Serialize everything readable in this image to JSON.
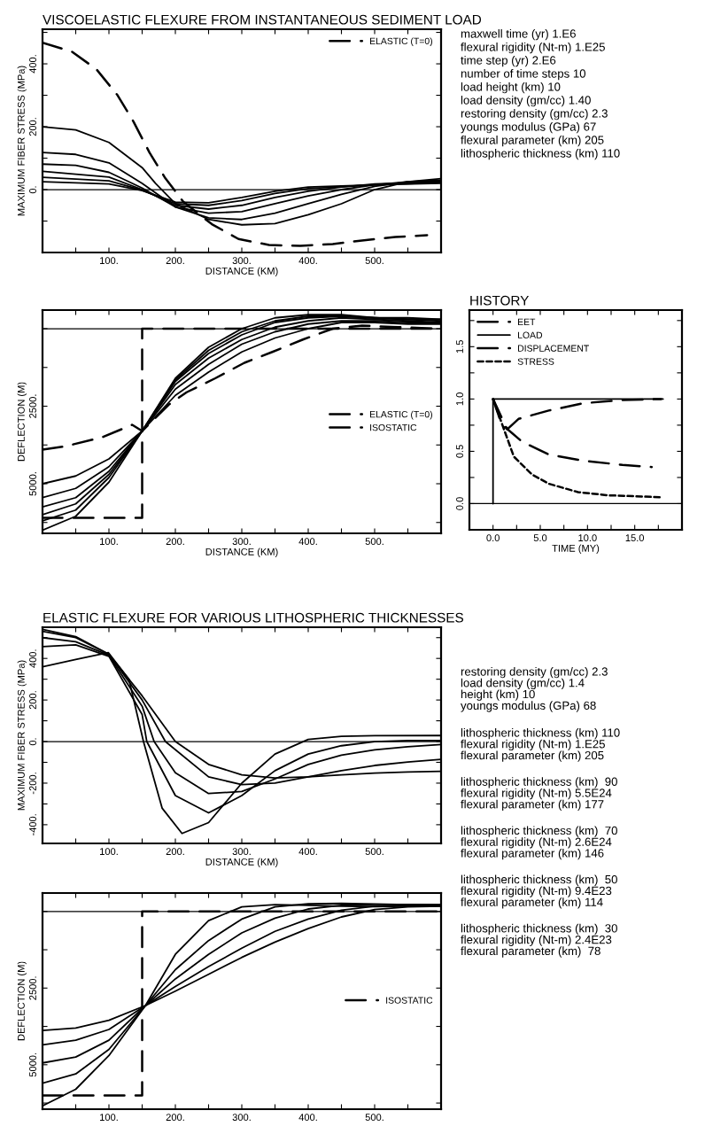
{
  "chart_data": [
    {
      "type": "line",
      "title": "VISCOELASTIC FLEXURE FROM INSTANTANEOUS SEDIMENT LOAD",
      "xlabel": "DISTANCE (KM)",
      "ylabel": "MAXIMUM FIBER STRESS (MPa)",
      "xlim": [
        0,
        600
      ],
      "ylim": [
        -200,
        510
      ],
      "xticks": [
        {
          "value": 50,
          "label": null
        },
        {
          "value": 100,
          "label": "100."
        },
        {
          "value": 150,
          "label": null
        },
        {
          "value": 200,
          "label": "200."
        },
        {
          "value": 250,
          "label": null
        },
        {
          "value": 300,
          "label": "300."
        },
        {
          "value": 350,
          "label": null
        },
        {
          "value": 400,
          "label": "400."
        },
        {
          "value": 450,
          "label": null
        },
        {
          "value": 500,
          "label": "500."
        },
        {
          "value": 550,
          "label": null
        }
      ],
      "yticks": [
        {
          "value": -100,
          "label": null
        },
        {
          "value": 0,
          "label": "0."
        },
        {
          "value": 100,
          "label": null
        },
        {
          "value": 200,
          "label": "200."
        },
        {
          "value": 300,
          "label": null
        },
        {
          "value": 400,
          "label": "400."
        },
        {
          "value": 500,
          "label": null
        }
      ],
      "legend": "top right",
      "ref_lines": [
        {
          "axis": "y",
          "value": 0,
          "color": "#000000"
        }
      ],
      "series": [
        {
          "name": "ELASTIC (T=0)",
          "color": "#000000",
          "line_style": "dashed",
          "x": [
            0,
            44,
            81,
            113,
            137,
            161,
            184,
            212,
            255,
            295,
            341,
            388,
            437,
            481,
            531,
            579
          ],
          "values": [
            467,
            439,
            383,
            300,
            216,
            118,
            39,
            -39,
            -110,
            -157,
            -176,
            -179,
            -173,
            -162,
            -151,
            -145
          ]
        },
        {
          "color": "#000000",
          "x": [
            0,
            50,
            100,
            150,
            170,
            200,
            250,
            300,
            350,
            400,
            450,
            500,
            550,
            600
          ],
          "values": [
            200,
            190,
            150,
            70,
            20,
            -45,
            -95,
            -112,
            -108,
            -80,
            -45,
            0,
            25,
            35
          ]
        },
        {
          "color": "#000000",
          "x": [
            0,
            50,
            100,
            150,
            200,
            250,
            300,
            350,
            400,
            450,
            500,
            550,
            600
          ],
          "values": [
            118,
            112,
            85,
            20,
            -55,
            -90,
            -95,
            -75,
            -45,
            -15,
            10,
            25,
            30
          ]
        },
        {
          "color": "#000000",
          "x": [
            0,
            50,
            100,
            150,
            200,
            250,
            300,
            350,
            400,
            450,
            500,
            550,
            600
          ],
          "values": [
            81,
            77,
            55,
            5,
            -55,
            -75,
            -70,
            -45,
            -20,
            0,
            15,
            25,
            28
          ]
        },
        {
          "color": "#000000",
          "x": [
            0,
            100,
            150,
            200,
            250,
            300,
            350,
            400,
            450,
            500,
            600
          ],
          "values": [
            58,
            40,
            0,
            -50,
            -62,
            -50,
            -25,
            -5,
            8,
            18,
            25
          ]
        },
        {
          "color": "#000000",
          "x": [
            0,
            100,
            150,
            200,
            250,
            300,
            350,
            400,
            500,
            600
          ],
          "values": [
            39,
            28,
            -2,
            -45,
            -50,
            -35,
            -12,
            3,
            15,
            22
          ]
        },
        {
          "color": "#000000",
          "x": [
            0,
            100,
            150,
            200,
            250,
            300,
            350,
            400,
            500,
            600
          ],
          "values": [
            25,
            18,
            -3,
            -40,
            -42,
            -25,
            -5,
            8,
            15,
            20
          ]
        }
      ],
      "annotations": [
        "maxwell time (yr) 1.E6",
        "flexural rigidity (Nt-m) 1.E25",
        "time step (yr) 2.E6",
        "number of time steps 10",
        "load height (km) 10",
        "load density (gm/cc) 1.40",
        "restoring density (gm/cc) 2.3",
        "youngs modulus (GPa) 67",
        "flexural parameter (km) 205",
        "lithospheric thickness (km) 110"
      ]
    },
    {
      "type": "line",
      "xlabel": "DISTANCE (KM)",
      "ylabel": "DEFLECTION (M)",
      "xlim": [
        0,
        600
      ],
      "ylim": [
        6600,
        -600
      ],
      "xticks": [
        {
          "value": 50,
          "label": null
        },
        {
          "value": 100,
          "label": "100."
        },
        {
          "value": 150,
          "label": null
        },
        {
          "value": 200,
          "label": "200."
        },
        {
          "value": 250,
          "label": null
        },
        {
          "value": 300,
          "label": "300."
        },
        {
          "value": 350,
          "label": null
        },
        {
          "value": 400,
          "label": "400."
        },
        {
          "value": 450,
          "label": null
        },
        {
          "value": 500,
          "label": "500."
        },
        {
          "value": 550,
          "label": null
        }
      ],
      "yticks": [
        {
          "value": 0,
          "label": null
        },
        {
          "value": 1250,
          "label": null
        },
        {
          "value": 2500,
          "label": "2500."
        },
        {
          "value": 3750,
          "label": null
        },
        {
          "value": 5000,
          "label": "5000."
        },
        {
          "value": 6250,
          "label": null
        }
      ],
      "legend": "center right",
      "ref_lines": [
        {
          "axis": "y",
          "value": 0,
          "color": "#000000"
        }
      ],
      "series": [
        {
          "name": "ELASTIC (T=0)",
          "color": "#000000",
          "line_style": "dashed",
          "x": [
            0,
            33,
            90,
            135,
            150,
            190,
            217,
            260,
            304,
            346,
            392,
            437,
            481,
            535,
            597
          ],
          "values": [
            3900,
            3800,
            3500,
            3100,
            3300,
            2450,
            2050,
            1600,
            1100,
            750,
            350,
            0,
            -100,
            -50,
            0
          ]
        },
        {
          "name": "ISOSTATIC",
          "color": "#000000",
          "line_style": "dashed",
          "x": [
            0,
            150,
            150,
            600
          ],
          "values": [
            6100,
            6100,
            0,
            0
          ]
        },
        {
          "color": "#000000",
          "x": [
            0,
            50,
            100,
            150,
            200,
            250,
            300,
            350,
            400,
            450,
            500,
            550,
            600
          ],
          "values": [
            5000,
            4750,
            4200,
            3300,
            2150,
            1400,
            750,
            300,
            0,
            -200,
            -200,
            -150,
            -150
          ]
        },
        {
          "color": "#000000",
          "x": [
            0,
            50,
            100,
            150,
            200,
            250,
            300,
            350,
            400,
            450,
            500,
            550,
            600
          ],
          "values": [
            5450,
            5150,
            4450,
            3300,
            1950,
            1150,
            500,
            100,
            -150,
            -250,
            -250,
            -200,
            -200
          ]
        },
        {
          "color": "#000000",
          "x": [
            0,
            50,
            100,
            150,
            200,
            250,
            300,
            350,
            400,
            450,
            500,
            550,
            600
          ],
          "values": [
            5750,
            5450,
            4600,
            3300,
            1800,
            950,
            350,
            -50,
            -250,
            -350,
            -300,
            -250,
            -200
          ]
        },
        {
          "color": "#000000",
          "x": [
            0,
            50,
            100,
            150,
            200,
            250,
            300,
            350,
            400,
            450,
            500,
            550,
            600
          ],
          "values": [
            6000,
            5650,
            4700,
            3300,
            1700,
            800,
            200,
            -200,
            -350,
            -400,
            -350,
            -300,
            -250
          ]
        },
        {
          "color": "#000000",
          "x": [
            0,
            50,
            100,
            150,
            200,
            250,
            300,
            350,
            400,
            450,
            500,
            550,
            600
          ],
          "values": [
            6200,
            5850,
            4800,
            3300,
            1650,
            700,
            100,
            -250,
            -400,
            -400,
            -350,
            -300,
            -300
          ]
        },
        {
          "color": "#000000",
          "x": [
            0,
            50,
            100,
            150,
            200,
            250,
            300,
            350,
            400,
            450,
            500,
            550,
            600
          ],
          "values": [
            6500,
            6050,
            4950,
            3300,
            1600,
            600,
            0,
            -350,
            -450,
            -450,
            -350,
            -350,
            -300
          ]
        }
      ]
    },
    {
      "type": "line",
      "title": "HISTORY",
      "xlabel": "TIME (MY)",
      "xlim": [
        -2.5,
        20
      ],
      "ylim": [
        -0.25,
        1.85
      ],
      "xticks": [
        {
          "value": 0,
          "label": "0.0"
        },
        {
          "value": 2.5,
          "label": null
        },
        {
          "value": 5,
          "label": "5.0"
        },
        {
          "value": 7.5,
          "label": null
        },
        {
          "value": 10,
          "label": "10.0"
        },
        {
          "value": 12.5,
          "label": null
        },
        {
          "value": 15,
          "label": "15.0"
        },
        {
          "value": 17.5,
          "label": null
        }
      ],
      "yticks": [
        {
          "value": 0,
          "label": "0.0"
        },
        {
          "value": 0.25,
          "label": null
        },
        {
          "value": 0.5,
          "label": "0.5"
        },
        {
          "value": 0.75,
          "label": null
        },
        {
          "value": 1,
          "label": "1.0"
        },
        {
          "value": 1.25,
          "label": null
        },
        {
          "value": 1.5,
          "label": "1.5"
        },
        {
          "value": 1.75,
          "label": null
        }
      ],
      "legend": "top left",
      "ref_lines": [
        {
          "axis": "y",
          "value": 0,
          "color": "#000000"
        }
      ],
      "series": [
        {
          "name": "EET",
          "color": "#000000",
          "line_style": "dashed",
          "x": [
            0,
            0.9,
            3.1,
            5.9,
            9.6,
            13.7,
            16.8
          ],
          "values": [
            1.0,
            0.76,
            0.59,
            0.47,
            0.41,
            0.37,
            0.35
          ]
        },
        {
          "name": "LOAD",
          "color": "#000000",
          "line_style": "solid",
          "x": [
            0,
            0,
            18
          ],
          "values": [
            0,
            1.0,
            1.0
          ]
        },
        {
          "name": "DISPLACEMENT",
          "color": "#000000",
          "line_style": "dashed",
          "x": [
            0,
            1.5,
            2.7,
            5.9,
            9.6,
            13.7,
            17.8
          ],
          "values": [
            1.0,
            0.71,
            0.81,
            0.89,
            0.96,
            0.99,
            1.0
          ]
        },
        {
          "name": "STRESS",
          "color": "#000000",
          "line_style": "dotted",
          "x": [
            0,
            1.2,
            2.2,
            4.1,
            5.9,
            9.0,
            12.1,
            15.2,
            17.9
          ],
          "values": [
            1.0,
            0.7,
            0.45,
            0.28,
            0.19,
            0.11,
            0.08,
            0.07,
            0.06
          ]
        }
      ]
    },
    {
      "type": "line",
      "title": "ELASTIC FLEXURE FOR VARIOUS LITHOSPHERIC THICKNESSES",
      "xlabel": "DISTANCE (KM)",
      "ylabel": "MAXIMUM FIBER STRESS (MPa)",
      "xlim": [
        0,
        600
      ],
      "ylim": [
        -490,
        550
      ],
      "xticks": [
        {
          "value": 50,
          "label": null
        },
        {
          "value": 100,
          "label": "100."
        },
        {
          "value": 150,
          "label": null
        },
        {
          "value": 200,
          "label": "200."
        },
        {
          "value": 250,
          "label": null
        },
        {
          "value": 300,
          "label": "300."
        },
        {
          "value": 350,
          "label": null
        },
        {
          "value": 400,
          "label": "400."
        },
        {
          "value": 450,
          "label": null
        },
        {
          "value": 500,
          "label": "500."
        },
        {
          "value": 550,
          "label": null
        }
      ],
      "yticks": [
        {
          "value": -400,
          "label": "-400."
        },
        {
          "value": -300,
          "label": null
        },
        {
          "value": -200,
          "label": "-200."
        },
        {
          "value": -100,
          "label": null
        },
        {
          "value": 0,
          "label": "0."
        },
        {
          "value": 100,
          "label": null
        },
        {
          "value": 200,
          "label": "200."
        },
        {
          "value": 300,
          "label": null
        },
        {
          "value": 400,
          "label": "400."
        },
        {
          "value": 500,
          "label": null
        }
      ],
      "ref_lines": [
        {
          "axis": "y",
          "value": 0,
          "color": "#000000"
        }
      ],
      "series": [
        {
          "color": "#000000",
          "x": [
            0,
            50,
            100,
            150,
            200,
            250,
            300,
            350,
            400,
            450,
            500,
            550,
            600
          ],
          "values": [
            530,
            500,
            420,
            220,
            0,
            -110,
            -160,
            -175,
            -170,
            -160,
            -152,
            -146,
            -143
          ]
        },
        {
          "color": "#000000",
          "x": [
            0,
            50,
            100,
            150,
            185,
            250,
            300,
            350,
            400,
            450,
            500,
            550,
            600
          ],
          "values": [
            540,
            505,
            420,
            200,
            0,
            -170,
            -207,
            -200,
            -170,
            -140,
            -115,
            -98,
            -86
          ]
        },
        {
          "color": "#000000",
          "x": [
            0,
            50,
            100,
            150,
            168,
            200,
            250,
            300,
            350,
            400,
            450,
            500,
            550,
            600
          ],
          "values": [
            500,
            480,
            415,
            170,
            0,
            -150,
            -250,
            -240,
            -180,
            -110,
            -65,
            -40,
            -25,
            -14
          ]
        },
        {
          "color": "#000000",
          "x": [
            0,
            50,
            100,
            150,
            157,
            200,
            250,
            300,
            350,
            400,
            450,
            500,
            550,
            600
          ],
          "values": [
            457,
            465,
            410,
            130,
            0,
            -260,
            -343,
            -260,
            -140,
            -60,
            -20,
            0,
            5,
            5
          ]
        },
        {
          "color": "#000000",
          "x": [
            0,
            50,
            99,
            130,
            152,
            180,
            210,
            250,
            300,
            350,
            400,
            450,
            500,
            600
          ],
          "values": [
            360,
            395,
            428,
            300,
            0,
            -320,
            -442,
            -390,
            -200,
            -60,
            10,
            25,
            28,
            29
          ]
        }
      ],
      "annotations": [
        "restoring density (gm/cc) 2.3\nload density (gm/cc) 1.4\nheight (km) 10\nyoungs modulus (GPa) 68",
        "lithospheric thickness (km) 110\nflexural rigidity (Nt-m) 1.E25\nflexural parameter (km) 205",
        "lithospheric thickness (km)  90\nflexural rigidity (Nt-m) 5.5E24\nflexural parameter (km) 177",
        "lithospheric thickness (km)  70\nflexural rigidity (Nt-m) 2.6E24\nflexural parameter (km) 146",
        "lithospheric thickness (km)  50\nflexural rigidity (Nt-m) 9.4E23\nflexural parameter (km) 114",
        "lithospheric thickness (km)  30\nflexural rigidity (Nt-m) 2.4E23\nflexural parameter (km)  78"
      ]
    },
    {
      "type": "line",
      "ylabel": "DEFLECTION (M)",
      "xlim": [
        0,
        600
      ],
      "ylim": [
        6450,
        -600
      ],
      "xticks": [
        {
          "value": 50,
          "label": null
        },
        {
          "value": 100,
          "label": "100."
        },
        {
          "value": 150,
          "label": null
        },
        {
          "value": 200,
          "label": "200."
        },
        {
          "value": 250,
          "label": null
        },
        {
          "value": 300,
          "label": "300."
        },
        {
          "value": 350,
          "label": null
        },
        {
          "value": 400,
          "label": "400."
        },
        {
          "value": 450,
          "label": null
        },
        {
          "value": 500,
          "label": "500."
        },
        {
          "value": 550,
          "label": null
        }
      ],
      "yticks": [
        {
          "value": 0,
          "label": null
        },
        {
          "value": 1250,
          "label": null
        },
        {
          "value": 2500,
          "label": "2500."
        },
        {
          "value": 3750,
          "label": null
        },
        {
          "value": 5000,
          "label": "5000."
        },
        {
          "value": 6250,
          "label": null
        }
      ],
      "legend": "center right",
      "ref_lines": [
        {
          "axis": "y",
          "value": 0,
          "color": "#000000"
        }
      ],
      "series": [
        {
          "name": "ISOSTATIC",
          "color": "#000000",
          "line_style": "dashed",
          "x": [
            0,
            150,
            150,
            600
          ],
          "values": [
            6000,
            6000,
            0,
            0
          ]
        },
        {
          "color": "#000000",
          "x": [
            0,
            50,
            100,
            155,
            200,
            250,
            300,
            350,
            400,
            450,
            500,
            550,
            600
          ],
          "values": [
            3880,
            3800,
            3550,
            3070,
            2600,
            2050,
            1500,
            1000,
            560,
            180,
            -60,
            -150,
            -170
          ]
        },
        {
          "color": "#000000",
          "x": [
            0,
            50,
            100,
            155,
            200,
            250,
            300,
            350,
            400,
            450,
            500,
            550,
            600
          ],
          "values": [
            4350,
            4200,
            3850,
            3070,
            2450,
            1800,
            1200,
            650,
            250,
            -40,
            -170,
            -200,
            -200
          ]
        },
        {
          "color": "#000000",
          "x": [
            0,
            50,
            100,
            155,
            200,
            250,
            300,
            350,
            400,
            450,
            500,
            550,
            600
          ],
          "values": [
            4940,
            4750,
            4200,
            3070,
            2200,
            1400,
            700,
            220,
            -80,
            -200,
            -230,
            -230,
            -220
          ]
        },
        {
          "color": "#000000",
          "x": [
            0,
            50,
            100,
            155,
            200,
            250,
            300,
            350,
            400,
            450,
            500,
            550,
            600
          ],
          "values": [
            5600,
            5300,
            4500,
            3070,
            1900,
            950,
            250,
            -150,
            -250,
            -260,
            -240,
            -220,
            -210
          ]
        },
        {
          "color": "#000000",
          "x": [
            0,
            50,
            100,
            155,
            200,
            250,
            300,
            350,
            400,
            450,
            500,
            550,
            600
          ],
          "values": [
            6340,
            5800,
            4700,
            3070,
            1400,
            300,
            -150,
            -220,
            -200,
            -170,
            -160,
            -170,
            -180
          ]
        }
      ]
    }
  ]
}
